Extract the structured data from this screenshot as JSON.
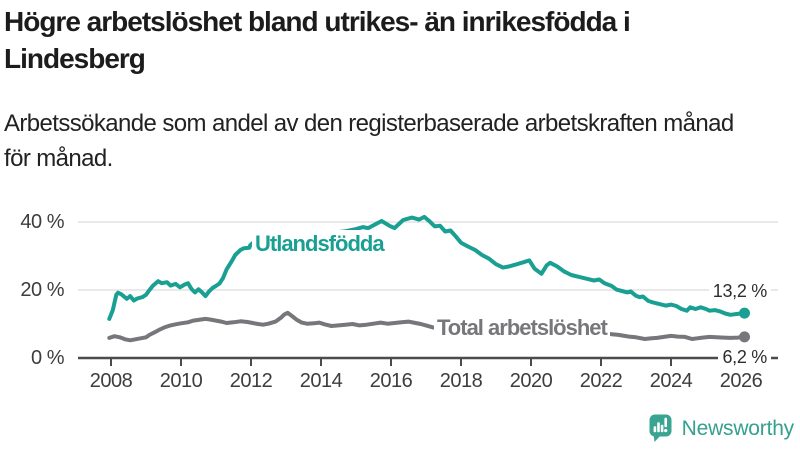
{
  "title": {
    "line1": "Högre arbetslöshet bland utrikes- än inrikesfödda i",
    "line2": "Lindesberg"
  },
  "subtitle": {
    "line1": "Arbetssökande som andel av den registerbaserade arbetskraften månad",
    "line2": "för månad."
  },
  "branding": {
    "wordmark": "Newsworthy",
    "icon": "bar-chart-speech-bubble-icon",
    "color": "#3aa492"
  },
  "chart_data": {
    "type": "line",
    "unit": "percent",
    "grid": true,
    "y_axis": {
      "range": [
        0,
        44
      ],
      "ticks": [
        {
          "value": 0,
          "label": "0 %"
        },
        {
          "value": 20,
          "label": "20 %"
        },
        {
          "value": 40,
          "label": "40 %"
        }
      ]
    },
    "x_axis": {
      "range": [
        2007.6,
        2027.0
      ],
      "ticks": [
        2008,
        2010,
        2012,
        2014,
        2016,
        2018,
        2020,
        2022,
        2024,
        2026
      ]
    },
    "series": [
      {
        "name": "Utlandsfödda",
        "color": "#1aa093",
        "end_label": "13,2 %",
        "end_value": 13.2,
        "points": [
          [
            2007.95,
            11.5
          ],
          [
            2008.05,
            14.0
          ],
          [
            2008.15,
            18.6
          ],
          [
            2008.2,
            19.2
          ],
          [
            2008.3,
            18.7
          ],
          [
            2008.45,
            17.4
          ],
          [
            2008.55,
            18.2
          ],
          [
            2008.65,
            16.9
          ],
          [
            2008.75,
            17.5
          ],
          [
            2008.9,
            17.9
          ],
          [
            2009.0,
            18.6
          ],
          [
            2009.1,
            20.0
          ],
          [
            2009.2,
            21.3
          ],
          [
            2009.35,
            22.6
          ],
          [
            2009.45,
            22.0
          ],
          [
            2009.6,
            22.3
          ],
          [
            2009.7,
            21.3
          ],
          [
            2009.85,
            21.8
          ],
          [
            2009.97,
            20.8
          ],
          [
            2010.1,
            21.6
          ],
          [
            2010.2,
            22.0
          ],
          [
            2010.3,
            20.3
          ],
          [
            2010.4,
            19.3
          ],
          [
            2010.5,
            20.2
          ],
          [
            2010.6,
            19.3
          ],
          [
            2010.7,
            18.2
          ],
          [
            2010.8,
            19.6
          ],
          [
            2010.9,
            20.6
          ],
          [
            2011.0,
            21.2
          ],
          [
            2011.1,
            21.9
          ],
          [
            2011.2,
            23.5
          ],
          [
            2011.3,
            26.0
          ],
          [
            2011.45,
            28.5
          ],
          [
            2011.55,
            30.3
          ],
          [
            2011.7,
            31.8
          ],
          [
            2011.8,
            32.3
          ],
          [
            2011.95,
            32.4
          ],
          [
            2011.98,
            33.2
          ],
          [
            2012.08,
            34.1
          ],
          [
            2012.35,
            34.0
          ],
          [
            2012.6,
            34.5
          ],
          [
            2012.9,
            35.1
          ],
          [
            2013.2,
            35.5
          ],
          [
            2013.5,
            35.9
          ],
          [
            2013.8,
            36.2
          ],
          [
            2014.1,
            36.5
          ],
          [
            2014.4,
            36.9
          ],
          [
            2014.7,
            37.3
          ],
          [
            2015.0,
            37.9
          ],
          [
            2015.2,
            38.5
          ],
          [
            2015.35,
            38.2
          ],
          [
            2015.55,
            39.3
          ],
          [
            2015.73,
            40.3
          ],
          [
            2015.97,
            38.8
          ],
          [
            2016.1,
            38.2
          ],
          [
            2016.35,
            40.6
          ],
          [
            2016.6,
            41.3
          ],
          [
            2016.8,
            40.7
          ],
          [
            2016.95,
            41.5
          ],
          [
            2017.1,
            40.2
          ],
          [
            2017.25,
            38.7
          ],
          [
            2017.4,
            38.9
          ],
          [
            2017.55,
            37.2
          ],
          [
            2017.7,
            37.5
          ],
          [
            2017.85,
            35.8
          ],
          [
            2018.0,
            33.9
          ],
          [
            2018.2,
            32.8
          ],
          [
            2018.4,
            31.8
          ],
          [
            2018.6,
            30.3
          ],
          [
            2018.8,
            29.2
          ],
          [
            2019.0,
            27.6
          ],
          [
            2019.2,
            26.6
          ],
          [
            2019.4,
            27.0
          ],
          [
            2019.6,
            27.6
          ],
          [
            2019.8,
            28.2
          ],
          [
            2019.95,
            28.7
          ],
          [
            2020.1,
            26.3
          ],
          [
            2020.3,
            24.8
          ],
          [
            2020.45,
            27.3
          ],
          [
            2020.55,
            28.0
          ],
          [
            2020.75,
            26.9
          ],
          [
            2020.95,
            25.4
          ],
          [
            2021.15,
            24.4
          ],
          [
            2021.35,
            23.9
          ],
          [
            2021.6,
            23.3
          ],
          [
            2021.8,
            22.8
          ],
          [
            2021.95,
            23.1
          ],
          [
            2022.1,
            22.0
          ],
          [
            2022.3,
            21.2
          ],
          [
            2022.45,
            20.1
          ],
          [
            2022.6,
            19.7
          ],
          [
            2022.75,
            19.3
          ],
          [
            2022.85,
            19.6
          ],
          [
            2023.0,
            18.3
          ],
          [
            2023.1,
            17.9
          ],
          [
            2023.2,
            18.1
          ],
          [
            2023.35,
            16.8
          ],
          [
            2023.5,
            16.3
          ],
          [
            2023.7,
            15.8
          ],
          [
            2023.85,
            15.4
          ],
          [
            2024.0,
            15.7
          ],
          [
            2024.15,
            15.3
          ],
          [
            2024.3,
            14.4
          ],
          [
            2024.45,
            13.9
          ],
          [
            2024.55,
            14.9
          ],
          [
            2024.7,
            14.4
          ],
          [
            2024.85,
            14.9
          ],
          [
            2025.0,
            14.4
          ],
          [
            2025.1,
            13.9
          ],
          [
            2025.25,
            14.1
          ],
          [
            2025.4,
            13.7
          ],
          [
            2025.55,
            13.1
          ],
          [
            2025.7,
            12.7
          ],
          [
            2025.85,
            12.9
          ],
          [
            2026.0,
            13.1
          ],
          [
            2026.1,
            13.2
          ]
        ]
      },
      {
        "name": "Total arbetslöshet",
        "color": "#76767b",
        "end_label": "6,2 %",
        "end_value": 6.2,
        "points": [
          [
            2007.95,
            5.9
          ],
          [
            2008.1,
            6.4
          ],
          [
            2008.25,
            6.1
          ],
          [
            2008.4,
            5.5
          ],
          [
            2008.55,
            5.2
          ],
          [
            2008.7,
            5.5
          ],
          [
            2008.85,
            5.8
          ],
          [
            2009.0,
            6.1
          ],
          [
            2009.1,
            6.8
          ],
          [
            2009.25,
            7.6
          ],
          [
            2009.4,
            8.4
          ],
          [
            2009.55,
            9.1
          ],
          [
            2009.7,
            9.6
          ],
          [
            2009.85,
            9.9
          ],
          [
            2010.0,
            10.2
          ],
          [
            2010.2,
            10.5
          ],
          [
            2010.35,
            11.0
          ],
          [
            2010.5,
            11.2
          ],
          [
            2010.7,
            11.5
          ],
          [
            2010.85,
            11.3
          ],
          [
            2011.0,
            11.0
          ],
          [
            2011.15,
            10.7
          ],
          [
            2011.3,
            10.3
          ],
          [
            2011.5,
            10.5
          ],
          [
            2011.7,
            10.8
          ],
          [
            2011.9,
            10.6
          ],
          [
            2012.05,
            10.3
          ],
          [
            2012.2,
            10.0
          ],
          [
            2012.35,
            9.8
          ],
          [
            2012.5,
            10.1
          ],
          [
            2012.7,
            10.7
          ],
          [
            2012.85,
            11.8
          ],
          [
            2012.95,
            12.8
          ],
          [
            2013.05,
            13.3
          ],
          [
            2013.15,
            12.5
          ],
          [
            2013.3,
            11.3
          ],
          [
            2013.45,
            10.4
          ],
          [
            2013.6,
            10.1
          ],
          [
            2013.8,
            10.2
          ],
          [
            2013.95,
            10.4
          ],
          [
            2014.1,
            9.9
          ],
          [
            2014.3,
            9.4
          ],
          [
            2014.5,
            9.6
          ],
          [
            2014.7,
            9.8
          ],
          [
            2014.9,
            10.0
          ],
          [
            2015.1,
            9.6
          ],
          [
            2015.3,
            9.8
          ],
          [
            2015.5,
            10.1
          ],
          [
            2015.7,
            10.4
          ],
          [
            2015.9,
            10.1
          ],
          [
            2016.1,
            10.3
          ],
          [
            2016.3,
            10.5
          ],
          [
            2016.5,
            10.7
          ],
          [
            2016.7,
            10.3
          ],
          [
            2016.85,
            10.0
          ],
          [
            2017.0,
            9.6
          ],
          [
            2017.2,
            9.0
          ],
          [
            2017.4,
            8.6
          ],
          [
            2017.7,
            8.3
          ],
          [
            2018.0,
            8.0
          ],
          [
            2018.4,
            7.7
          ],
          [
            2018.8,
            7.4
          ],
          [
            2019.2,
            7.2
          ],
          [
            2019.6,
            7.1
          ],
          [
            2019.9,
            7.3
          ],
          [
            2020.2,
            8.0
          ],
          [
            2020.5,
            9.0
          ],
          [
            2020.7,
            9.2
          ],
          [
            2021.0,
            8.8
          ],
          [
            2021.4,
            8.2
          ],
          [
            2021.8,
            7.6
          ],
          [
            2022.2,
            7.1
          ],
          [
            2022.5,
            6.8
          ],
          [
            2022.8,
            6.3
          ],
          [
            2023.0,
            6.1
          ],
          [
            2023.25,
            5.6
          ],
          [
            2023.45,
            5.8
          ],
          [
            2023.6,
            5.9
          ],
          [
            2023.8,
            6.2
          ],
          [
            2024.0,
            6.5
          ],
          [
            2024.2,
            6.3
          ],
          [
            2024.4,
            6.2
          ],
          [
            2024.6,
            5.6
          ],
          [
            2024.75,
            5.8
          ],
          [
            2024.9,
            6.0
          ],
          [
            2025.1,
            6.2
          ],
          [
            2025.3,
            6.1
          ],
          [
            2025.5,
            6.0
          ],
          [
            2025.7,
            5.9
          ],
          [
            2025.9,
            6.0
          ],
          [
            2026.1,
            6.2
          ]
        ]
      }
    ]
  }
}
